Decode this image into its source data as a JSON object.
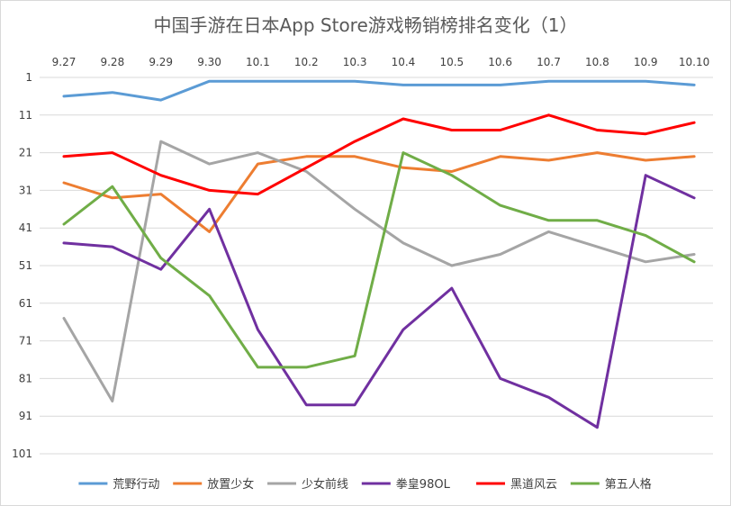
{
  "chart_data": {
    "type": "line",
    "title": "中国手游在日本App Store游戏畅销榜排名变化（1）",
    "xlabel": "",
    "ylabel": "",
    "categories": [
      "9.27",
      "9.28",
      "9.29",
      "9.30",
      "10.1",
      "10.2",
      "10.3",
      "10.4",
      "10.5",
      "10.6",
      "10.7",
      "10.8",
      "10.9",
      "10.10"
    ],
    "y_ticks": [
      "1",
      "11",
      "21",
      "31",
      "41",
      "51",
      "61",
      "71",
      "81",
      "91",
      "101"
    ],
    "ylim": [
      1,
      101
    ],
    "y_reversed": true,
    "x_axis_position": "top",
    "grid": true,
    "legend_position": "bottom",
    "series": [
      {
        "name": "荒野行动",
        "color": "#5b9bd5",
        "values": [
          6,
          5,
          7,
          2,
          2,
          2,
          2,
          3,
          3,
          3,
          2,
          2,
          2,
          3
        ]
      },
      {
        "name": "放置少女",
        "color": "#ed7d31",
        "values": [
          29,
          33,
          32,
          42,
          24,
          22,
          22,
          25,
          26,
          22,
          23,
          21,
          23,
          22
        ]
      },
      {
        "name": "少女前线",
        "color": "#a5a5a5",
        "values": [
          65,
          87,
          18,
          24,
          21,
          26,
          36,
          45,
          51,
          48,
          42,
          46,
          50,
          48
        ]
      },
      {
        "name": "拳皇98OL",
        "color": "#7030a0",
        "values": [
          45,
          46,
          52,
          36,
          68,
          88,
          88,
          68,
          57,
          81,
          86,
          94,
          27,
          33
        ]
      },
      {
        "name": "黑道风云",
        "color": "#ff0000",
        "values": [
          22,
          21,
          27,
          31,
          32,
          25,
          18,
          12,
          15,
          15,
          11,
          15,
          16,
          13
        ]
      },
      {
        "name": "第五人格",
        "color": "#70ad47",
        "values": [
          40,
          30,
          49,
          59,
          78,
          78,
          75,
          21,
          27,
          35,
          39,
          39,
          43,
          50
        ]
      }
    ]
  }
}
